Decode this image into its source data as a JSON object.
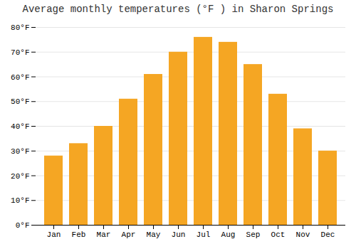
{
  "chart_data": {
    "type": "bar",
    "title": "Average monthly temperatures (°F ) in Sharon Springs",
    "categories": [
      "Jan",
      "Feb",
      "Mar",
      "Apr",
      "May",
      "Jun",
      "Jul",
      "Aug",
      "Sep",
      "Oct",
      "Nov",
      "Dec"
    ],
    "values": [
      28,
      33,
      40,
      51,
      61,
      70,
      76,
      74,
      65,
      53,
      39,
      30
    ],
    "color": "#F5A623",
    "ylim": [
      0,
      80
    ],
    "yticks": [
      {
        "value": 0,
        "label": "0°F"
      },
      {
        "value": 10,
        "label": "10°F"
      },
      {
        "value": 20,
        "label": "20°F"
      },
      {
        "value": 30,
        "label": "30°F"
      },
      {
        "value": 40,
        "label": "40°F"
      },
      {
        "value": 50,
        "label": "50°F"
      },
      {
        "value": 60,
        "label": "60°F"
      },
      {
        "value": 70,
        "label": "70°F"
      },
      {
        "value": 80,
        "label": "80°F"
      }
    ],
    "grid": true
  }
}
